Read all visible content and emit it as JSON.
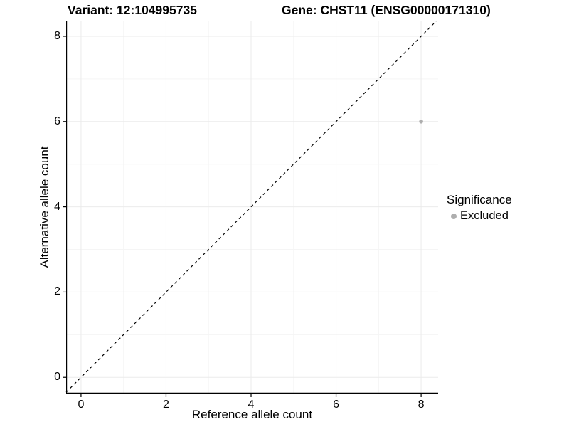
{
  "chart_data": {
    "type": "scatter",
    "titles": {
      "left": "Variant: 12:104995735",
      "right": "Gene: CHST11 (ENSG00000171310)"
    },
    "xlabel": "Reference allele count",
    "ylabel": "Alternative allele count",
    "xlim": [
      -0.35,
      8.4
    ],
    "ylim": [
      -0.38,
      8.35
    ],
    "xticks": [
      0,
      2,
      4,
      6,
      8
    ],
    "yticks": [
      0,
      2,
      4,
      6,
      8
    ],
    "xticks_minor": [
      1,
      3,
      5,
      7
    ],
    "yticks_minor": [
      1,
      3,
      5,
      7
    ],
    "grid": "major and minor gridlines, very light gray on white panel",
    "points": [
      {
        "x": 8,
        "y": 6,
        "series": "Excluded"
      }
    ],
    "reference_line": {
      "type": "identity y=x",
      "style": "dashed",
      "color": "#000000"
    },
    "legend": {
      "title": "Significance",
      "position": "right",
      "items": [
        {
          "label": "Excluded",
          "color": "#AEAEAE"
        }
      ]
    },
    "colors": {
      "grid_major": "#EBEBEB",
      "grid_minor": "#F5F5F5",
      "axis": "#000000",
      "point": "#AEAEAE",
      "text": "#000000"
    }
  }
}
